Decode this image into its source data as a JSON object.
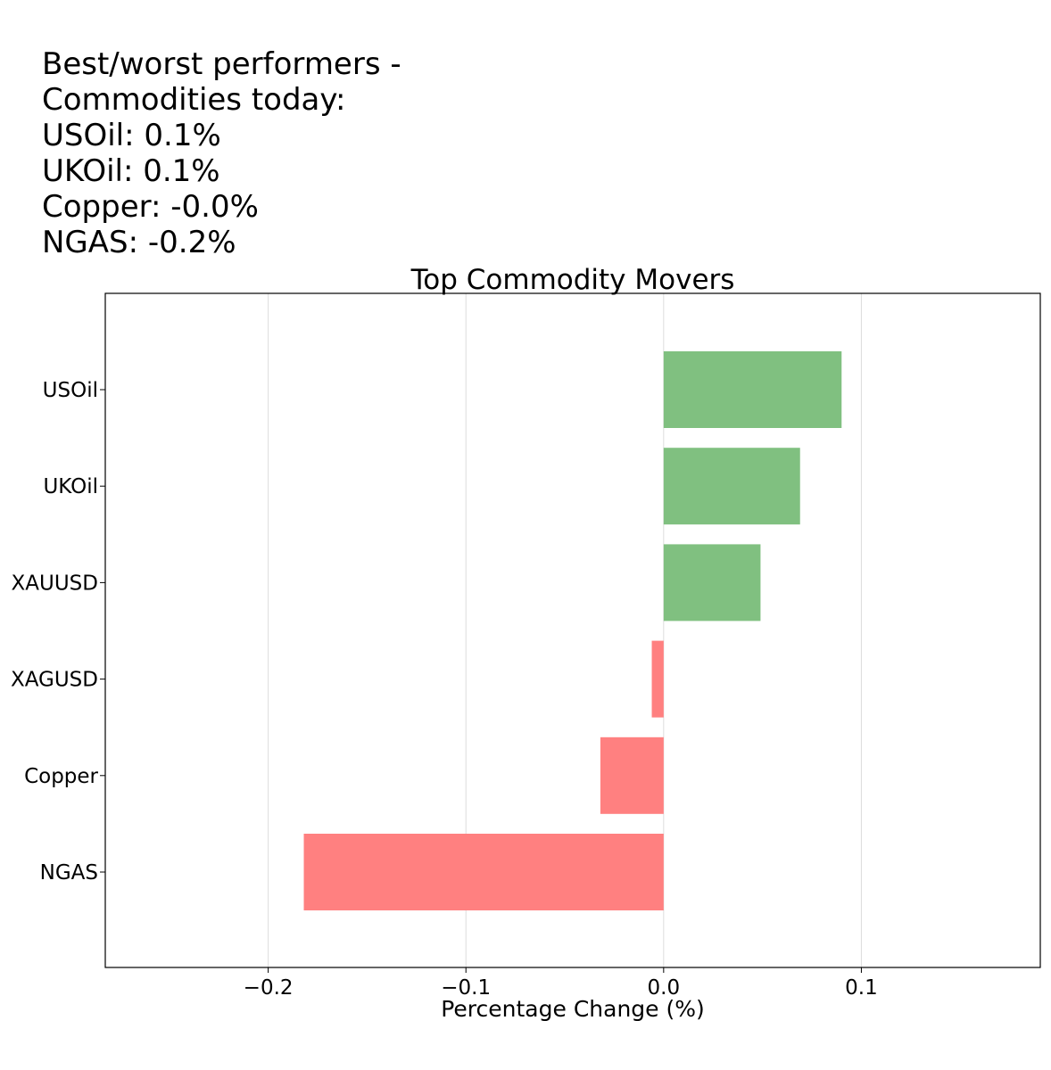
{
  "summary": {
    "lines": [
      "Best/worst performers -",
      "Commodities today:",
      "USOil: 0.1%",
      "UKOil: 0.1%",
      "Copper: -0.0%",
      "NGAS: -0.2%"
    ]
  },
  "chart_data": {
    "type": "bar",
    "orientation": "horizontal",
    "title": "Top Commodity Movers",
    "xlabel": "Percentage Change (%)",
    "ylabel": "",
    "xlim": [
      -0.2824,
      0.1905
    ],
    "xticks": [
      -0.2,
      -0.1,
      0.0,
      0.1
    ],
    "xtick_labels": [
      "−0.2",
      "−0.1",
      "0.0",
      "0.1"
    ],
    "grid": "vertical",
    "categories": [
      "USOil",
      "UKOil",
      "XAUUSD",
      "XAGUSD",
      "Copper",
      "NGAS"
    ],
    "values": [
      0.09,
      0.069,
      0.049,
      -0.006,
      -0.032,
      -0.182
    ],
    "colors": {
      "positive": "#80c080",
      "negative": "#ff8080",
      "grid": "#dcdcdc",
      "axis": "#000000"
    }
  }
}
